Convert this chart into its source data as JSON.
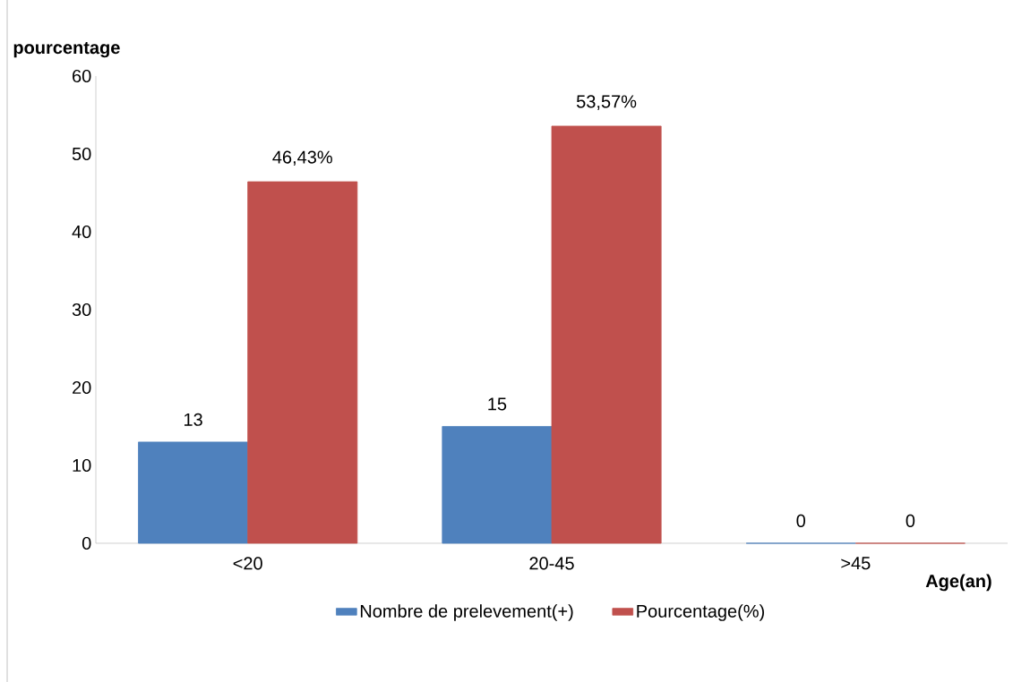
{
  "chart_data": {
    "type": "bar",
    "ylabel": "pourcentage",
    "xlabel": "Age(an)",
    "categories": [
      "<20",
      "20-45",
      ">45"
    ],
    "series": [
      {
        "name": "Nombre de prelevement(+)",
        "color": "#4f81bd",
        "values": [
          13,
          15,
          0
        ],
        "value_labels": [
          "13",
          "15",
          "0"
        ]
      },
      {
        "name": "Pourcentage(%)",
        "color": "#c0504d",
        "values": [
          46.43,
          53.57,
          0
        ],
        "value_labels": [
          "46,43%",
          "53,57%",
          "0"
        ]
      }
    ],
    "ylim": [
      0,
      60
    ],
    "yticks": [
      0,
      10,
      20,
      30,
      40,
      50,
      60
    ],
    "legend": "bottom"
  }
}
